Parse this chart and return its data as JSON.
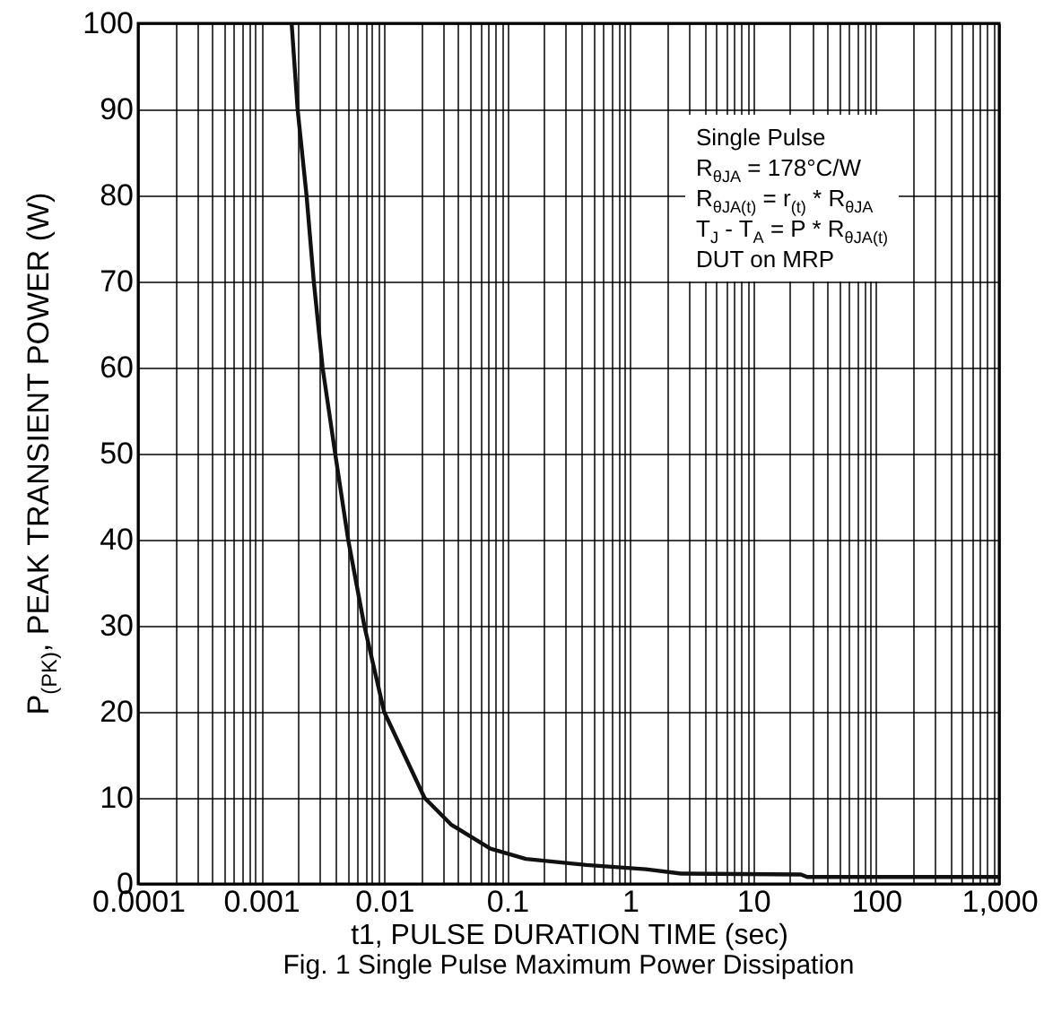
{
  "chart_data": {
    "type": "line",
    "title": "Fig. 1 Single Pulse Maximum Power Dissipation",
    "xlabel": "t1, PULSE DURATION TIME (sec)",
    "ylabel": "P$_{(PK)}$, PEAK TRANSIENT POWER (W)",
    "annotations": [
      "Single Pulse",
      "R$_{θJA}$ = 178°C/W",
      "R$_{θJA(t)}$ = r$_{(t)}$ * R$_{θJA}$",
      "T$_{J}$ - T$_{A}$ = P * R$_{θJA(t)}$",
      "DUT on MRP"
    ],
    "log": "x",
    "grid": true,
    "xlim": [
      0.0001,
      1000
    ],
    "ylim": [
      0,
      100
    ],
    "xticks": [
      0.0001,
      {
        "value": 0.0002,
        "label": null
      },
      {
        "value": 0.0003,
        "label": null
      },
      {
        "value": 0.0004,
        "label": null
      },
      {
        "value": 0.0005,
        "label": null
      },
      {
        "value": 0.0006,
        "label": null
      },
      {
        "value": 0.0007,
        "label": null
      },
      {
        "value": 0.0008,
        "label": null
      },
      {
        "value": 0.0009,
        "label": null
      },
      0.001,
      {
        "value": 0.002,
        "label": null
      },
      {
        "value": 0.003,
        "label": null
      },
      {
        "value": 0.004,
        "label": null
      },
      {
        "value": 0.005,
        "label": null
      },
      {
        "value": 0.006,
        "label": null
      },
      {
        "value": 0.007,
        "label": null
      },
      {
        "value": 0.008,
        "label": null
      },
      {
        "value": 0.009,
        "label": null
      },
      0.01,
      {
        "value": 0.02,
        "label": null
      },
      {
        "value": 0.03,
        "label": null
      },
      {
        "value": 0.04,
        "label": null
      },
      {
        "value": 0.05,
        "label": null
      },
      {
        "value": 0.06,
        "label": null
      },
      {
        "value": 0.07,
        "label": null
      },
      {
        "value": 0.08,
        "label": null
      },
      {
        "value": 0.09,
        "label": null
      },
      0.1,
      {
        "value": 0.2,
        "label": null
      },
      {
        "value": 0.3,
        "label": null
      },
      {
        "value": 0.4,
        "label": null
      },
      {
        "value": 0.5,
        "label": null
      },
      {
        "value": 0.6,
        "label": null
      },
      {
        "value": 0.7,
        "label": null
      },
      {
        "value": 0.8,
        "label": null
      },
      {
        "value": 0.9,
        "label": null
      },
      1,
      {
        "value": 2,
        "label": null
      },
      {
        "value": 3,
        "label": null
      },
      {
        "value": 4,
        "label": null
      },
      {
        "value": 5,
        "label": null
      },
      {
        "value": 6,
        "label": null
      },
      {
        "value": 7,
        "label": null
      },
      {
        "value": 8,
        "label": null
      },
      {
        "value": 9,
        "label": null
      },
      10,
      {
        "value": 20,
        "label": null
      },
      {
        "value": 30,
        "label": null
      },
      {
        "value": 40,
        "label": null
      },
      {
        "value": 50,
        "label": null
      },
      {
        "value": 60,
        "label": null
      },
      {
        "value": 70,
        "label": null
      },
      {
        "value": 80,
        "label": null
      },
      {
        "value": 90,
        "label": null
      },
      100,
      {
        "value": 200,
        "label": null
      },
      {
        "value": 300,
        "label": null
      },
      {
        "value": 400,
        "label": null
      },
      {
        "value": 500,
        "label": null
      },
      {
        "value": 600,
        "label": null
      },
      {
        "value": 700,
        "label": null
      },
      {
        "value": 800,
        "label": null
      },
      {
        "value": 900,
        "label": null
      },
      {
        "value": 1000,
        "label": "1,000"
      }
    ],
    "yticks": [
      0,
      10,
      20,
      30,
      40,
      50,
      60,
      70,
      80,
      90,
      100
    ],
    "series": [
      {
        "color": "#111111",
        "x": [
          0.00177,
          0.00198,
          0.00234,
          0.00268,
          0.00316,
          0.004,
          0.0051,
          0.0069,
          0.01,
          0.0213,
          0.035,
          0.073,
          0.142,
          0.44,
          1.34,
          2.6,
          24.5,
          27.5,
          1000
        ],
        "values": [
          100,
          90,
          80,
          70,
          60,
          50,
          40,
          30,
          20,
          10,
          6.9,
          4.1,
          2.9,
          2.2,
          1.7,
          1.2,
          1.1,
          0.8,
          0.8
        ]
      }
    ]
  }
}
